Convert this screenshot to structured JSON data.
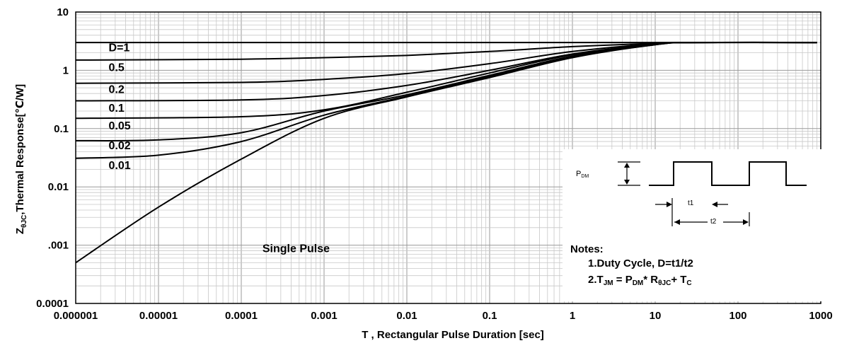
{
  "chart_data": {
    "type": "line",
    "title": "",
    "xlabel": "T , Rectangular Pulse Duration [sec]",
    "ylabel": {
      "prefix": "Z",
      "sub": "θJC",
      "suffix": ",Thermal Response[℃/W]"
    },
    "xscale": "log",
    "yscale": "log",
    "xlim": [
      1e-06,
      1000
    ],
    "ylim": [
      0.0001,
      10
    ],
    "grid": true,
    "x_tick_labels": [
      "0.000001",
      "0.00001",
      "0.0001",
      "0.001",
      "0.01",
      "0.1",
      "1",
      "10",
      "100",
      "1000"
    ],
    "y_tick_labels": [
      "0.0001",
      ".001",
      "0.01",
      "0.1",
      "1",
      "10"
    ],
    "series": [
      {
        "name": "D=1",
        "x": [
          1e-06,
          0.1,
          1,
          10,
          100,
          900
        ],
        "values": [
          3.0,
          3.0,
          3.0,
          3.0,
          3.0,
          3.0
        ]
      },
      {
        "name": "0.5",
        "x": [
          1e-06,
          0.0001,
          0.001,
          0.01,
          0.1,
          1,
          10,
          30,
          900
        ],
        "values": [
          1.5,
          1.55,
          1.65,
          1.8,
          2.1,
          2.55,
          2.9,
          3.0,
          3.0
        ]
      },
      {
        "name": "0.2",
        "x": [
          1e-06,
          0.0001,
          0.001,
          0.01,
          0.1,
          1,
          10,
          30,
          900
        ],
        "values": [
          0.6,
          0.62,
          0.7,
          0.88,
          1.3,
          2.1,
          2.85,
          3.0,
          3.0
        ]
      },
      {
        "name": "0.1",
        "x": [
          1e-06,
          0.0001,
          0.001,
          0.01,
          0.1,
          1,
          10,
          30,
          900
        ],
        "values": [
          0.3,
          0.31,
          0.37,
          0.55,
          1.0,
          1.9,
          2.8,
          3.0,
          3.0
        ]
      },
      {
        "name": "0.05",
        "x": [
          1e-06,
          0.0001,
          0.001,
          0.01,
          0.1,
          1,
          10,
          30,
          900
        ],
        "values": [
          0.15,
          0.16,
          0.21,
          0.42,
          0.9,
          1.85,
          2.8,
          3.0,
          3.0
        ]
      },
      {
        "name": "0.02",
        "x": [
          1e-06,
          1e-05,
          0.0001,
          0.001,
          0.01,
          0.1,
          1,
          10,
          30,
          900
        ],
        "values": [
          0.062,
          0.064,
          0.085,
          0.2,
          0.38,
          0.82,
          1.75,
          2.8,
          3.0,
          3.0
        ]
      },
      {
        "name": "0.01",
        "x": [
          1e-06,
          1e-05,
          0.0001,
          0.001,
          0.01,
          0.1,
          1,
          10,
          30,
          900
        ],
        "values": [
          0.031,
          0.035,
          0.06,
          0.17,
          0.36,
          0.78,
          1.7,
          2.75,
          3.0,
          3.0
        ]
      },
      {
        "name": "Single Pulse",
        "x": [
          1e-06,
          1e-05,
          0.0001,
          0.001,
          0.01,
          0.1,
          1,
          10,
          30,
          900
        ],
        "values": [
          0.0005,
          0.0045,
          0.03,
          0.15,
          0.35,
          0.75,
          1.65,
          2.75,
          3.0,
          3.0
        ]
      }
    ],
    "curve_labels": [
      {
        "text": "D=1",
        "x": 2.5e-06,
        "y": 2.5
      },
      {
        "text": "0.5",
        "x": 2.5e-06,
        "y": 1.15
      },
      {
        "text": "0.2",
        "x": 2.5e-06,
        "y": 0.48
      },
      {
        "text": "0.1",
        "x": 2.5e-06,
        "y": 0.23
      },
      {
        "text": "0.05",
        "x": 2.5e-06,
        "y": 0.115
      },
      {
        "text": "0.02",
        "x": 2.5e-06,
        "y": 0.052
      },
      {
        "text": "0.01",
        "x": 2.5e-06,
        "y": 0.024
      },
      {
        "text": "Single Pulse",
        "x": 0.00018,
        "y": 0.0009
      }
    ]
  },
  "inset": {
    "pdm": {
      "main": "P",
      "sub": "DM"
    },
    "t1": "t1",
    "t2": "t2",
    "notes_title": "Notes:",
    "note1": "1.Duty  Cycle, D=t1/t2",
    "note2": {
      "a": "2.T",
      "a_sub": "JM",
      "b": " = P",
      "b_sub": "DM",
      "c": "* R",
      "c_sub": "θJC",
      "d": "+ T",
      "d_sub": "C"
    }
  }
}
